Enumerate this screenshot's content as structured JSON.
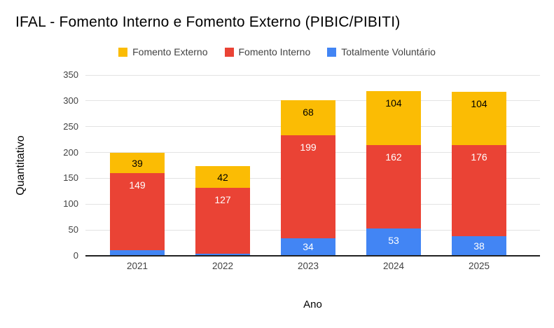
{
  "title": "IFAL - Fomento Interno e Fomento Externo (PIBIC/PIBITI)",
  "legend": [
    {
      "label": "Fomento Externo",
      "color": "#FBBC04"
    },
    {
      "label": "Fomento Interno",
      "color": "#EA4335"
    },
    {
      "label": "Totalmente Voluntário",
      "color": "#4285F4"
    }
  ],
  "axes": {
    "y_title": "Quantitativo",
    "x_title": "Ano",
    "y_ticks": [
      0,
      50,
      100,
      150,
      200,
      250,
      300,
      350
    ]
  },
  "chart_data": {
    "type": "bar",
    "stacked": true,
    "title": "IFAL - Fomento Interno e Fomento Externo (PIBIC/PIBITI)",
    "xlabel": "Ano",
    "ylabel": "Quantitativo",
    "ylim": [
      0,
      350
    ],
    "grid": true,
    "legend_position": "top",
    "categories": [
      "2021",
      "2022",
      "2023",
      "2024",
      "2025"
    ],
    "series": [
      {
        "name": "Totalmente Voluntário",
        "color": "#4285F4",
        "label_color": "#ffffff",
        "values": [
          11,
          4,
          34,
          53,
          38
        ]
      },
      {
        "name": "Fomento Interno",
        "color": "#EA4335",
        "label_color": "#ffffff",
        "values": [
          149,
          127,
          199,
          162,
          176
        ]
      },
      {
        "name": "Fomento Externo",
        "color": "#FBBC04",
        "label_color": "#000000",
        "values": [
          39,
          42,
          68,
          104,
          104
        ]
      }
    ],
    "totals": [
      199,
      173,
      301,
      319,
      318
    ]
  }
}
